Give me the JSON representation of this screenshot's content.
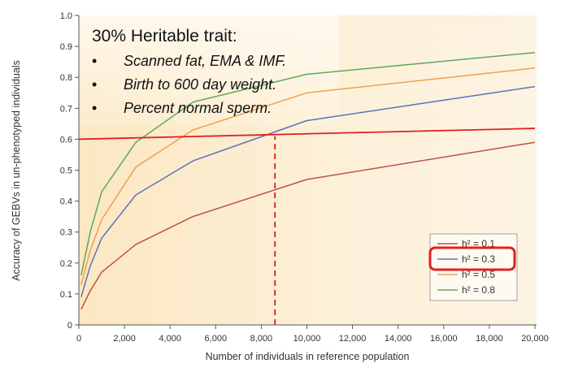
{
  "chart_data": {
    "type": "line",
    "xlabel": "Number of individuals in reference population",
    "ylabel": "Accuracy of GEBVs in un-phenotyped individuals",
    "xlim": [
      0,
      20000
    ],
    "ylim": [
      0,
      1.0
    ],
    "x_ticks": [
      "0",
      "2,000",
      "4,000",
      "6,000",
      "8,000",
      "10,000",
      "12,000",
      "14,000",
      "16,000",
      "18,000",
      "20,000"
    ],
    "x_tick_values": [
      0,
      2000,
      4000,
      6000,
      8000,
      10000,
      12000,
      14000,
      16000,
      18000,
      20000
    ],
    "y_ticks": [
      "0",
      "0.1",
      "0.2",
      "0.3",
      "0.4",
      "0.5",
      "0.6",
      "0.7",
      "0.8",
      "0.9",
      "1.0"
    ],
    "y_tick_values": [
      0,
      0.1,
      0.2,
      0.3,
      0.4,
      0.5,
      0.6,
      0.7,
      0.8,
      0.9,
      1.0
    ],
    "grid": false,
    "legend_position": "bottom-right",
    "series": [
      {
        "name": "h² = 0.1",
        "color": "#c0504d",
        "x": [
          100,
          500,
          1000,
          2500,
          5000,
          10000,
          20000
        ],
        "y": [
          0.05,
          0.11,
          0.17,
          0.26,
          0.35,
          0.47,
          0.59
        ]
      },
      {
        "name": "h² = 0.3",
        "color": "#5b73b8",
        "x": [
          100,
          500,
          1000,
          2500,
          5000,
          10000,
          20000
        ],
        "y": [
          0.09,
          0.19,
          0.28,
          0.42,
          0.53,
          0.66,
          0.77
        ]
      },
      {
        "name": "h² = 0.5",
        "color": "#f0a050",
        "x": [
          100,
          500,
          1000,
          2500,
          5000,
          10000,
          20000
        ],
        "y": [
          0.13,
          0.24,
          0.34,
          0.51,
          0.63,
          0.75,
          0.83
        ]
      },
      {
        "name": "h² = 0.8",
        "color": "#5aaa5a",
        "x": [
          100,
          500,
          1000,
          2500,
          5000,
          10000,
          20000
        ],
        "y": [
          0.16,
          0.3,
          0.43,
          0.59,
          0.72,
          0.81,
          0.88
        ]
      }
    ],
    "reference_line": {
      "color": "#e02020",
      "x": [
        0,
        20000
      ],
      "y": [
        0.6,
        0.635
      ]
    },
    "vertical_marker": {
      "color": "#d02020",
      "style": "dashed",
      "x": 8600,
      "y": [
        0,
        0.61
      ]
    },
    "highlight_color": "#e02020"
  },
  "overlay": {
    "title": "30% Heritable trait:",
    "bullet": "•",
    "items": [
      "Scanned fat,  EMA & IMF.",
      "Birth to 600 day weight.",
      "Percent normal sperm."
    ]
  },
  "colors": {
    "background_band": "#fbeacb",
    "axis": "#555555"
  }
}
